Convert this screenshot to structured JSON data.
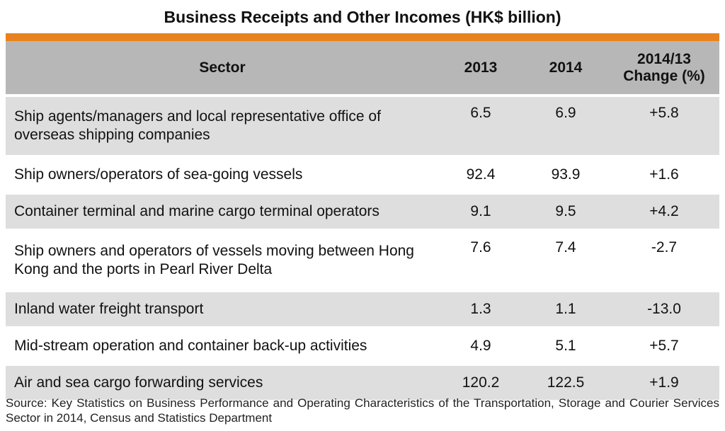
{
  "title": "Business Receipts and Other Incomes (HK$ billion)",
  "colors": {
    "accent": "#e8821e",
    "header_bg": "#b7b7b7",
    "row_shade": "#dedede",
    "row_plain": "#ffffff"
  },
  "chart_data": {
    "type": "table",
    "title": "Business Receipts and Other Incomes (HK$ billion)",
    "columns": [
      "Sector",
      "2013",
      "2014",
      "2014/13 Change (%)"
    ],
    "rows": [
      {
        "sector": "Ship agents/managers and local representative office of overseas shipping companies",
        "y2013": "6.5",
        "y2014": "6.9",
        "change": "+5.8"
      },
      {
        "sector": "Ship owners/operators of sea-going vessels",
        "y2013": "92.4",
        "y2014": "93.9",
        "change": "+1.6"
      },
      {
        "sector": "Container terminal and marine cargo terminal operators",
        "y2013": "9.1",
        "y2014": "9.5",
        "change": "+4.2"
      },
      {
        "sector": "Ship owners and operators of vessels moving between Hong Kong and the ports in Pearl River Delta",
        "y2013": "7.6",
        "y2014": "7.4",
        "change": "-2.7"
      },
      {
        "sector": "Inland water freight transport",
        "y2013": "1.3",
        "y2014": "1.1",
        "change": "-13.0"
      },
      {
        "sector": "Mid-stream operation and container back-up activities",
        "y2013": "4.9",
        "y2014": "5.1",
        "change": "+5.7"
      },
      {
        "sector": "Air and sea cargo forwarding services",
        "y2013": "120.2",
        "y2014": "122.5",
        "change": "+1.9"
      }
    ]
  },
  "table": {
    "headers": {
      "sector": "Sector",
      "y2013": "2013",
      "y2014": "2014",
      "change_line1": "2014/13",
      "change_line2": "Change (%)"
    }
  },
  "source": "Source: Key Statistics on Business Performance and Operating Characteristics of the Transportation, Storage and Courier Services Sector in 2014, Census and Statistics Department"
}
